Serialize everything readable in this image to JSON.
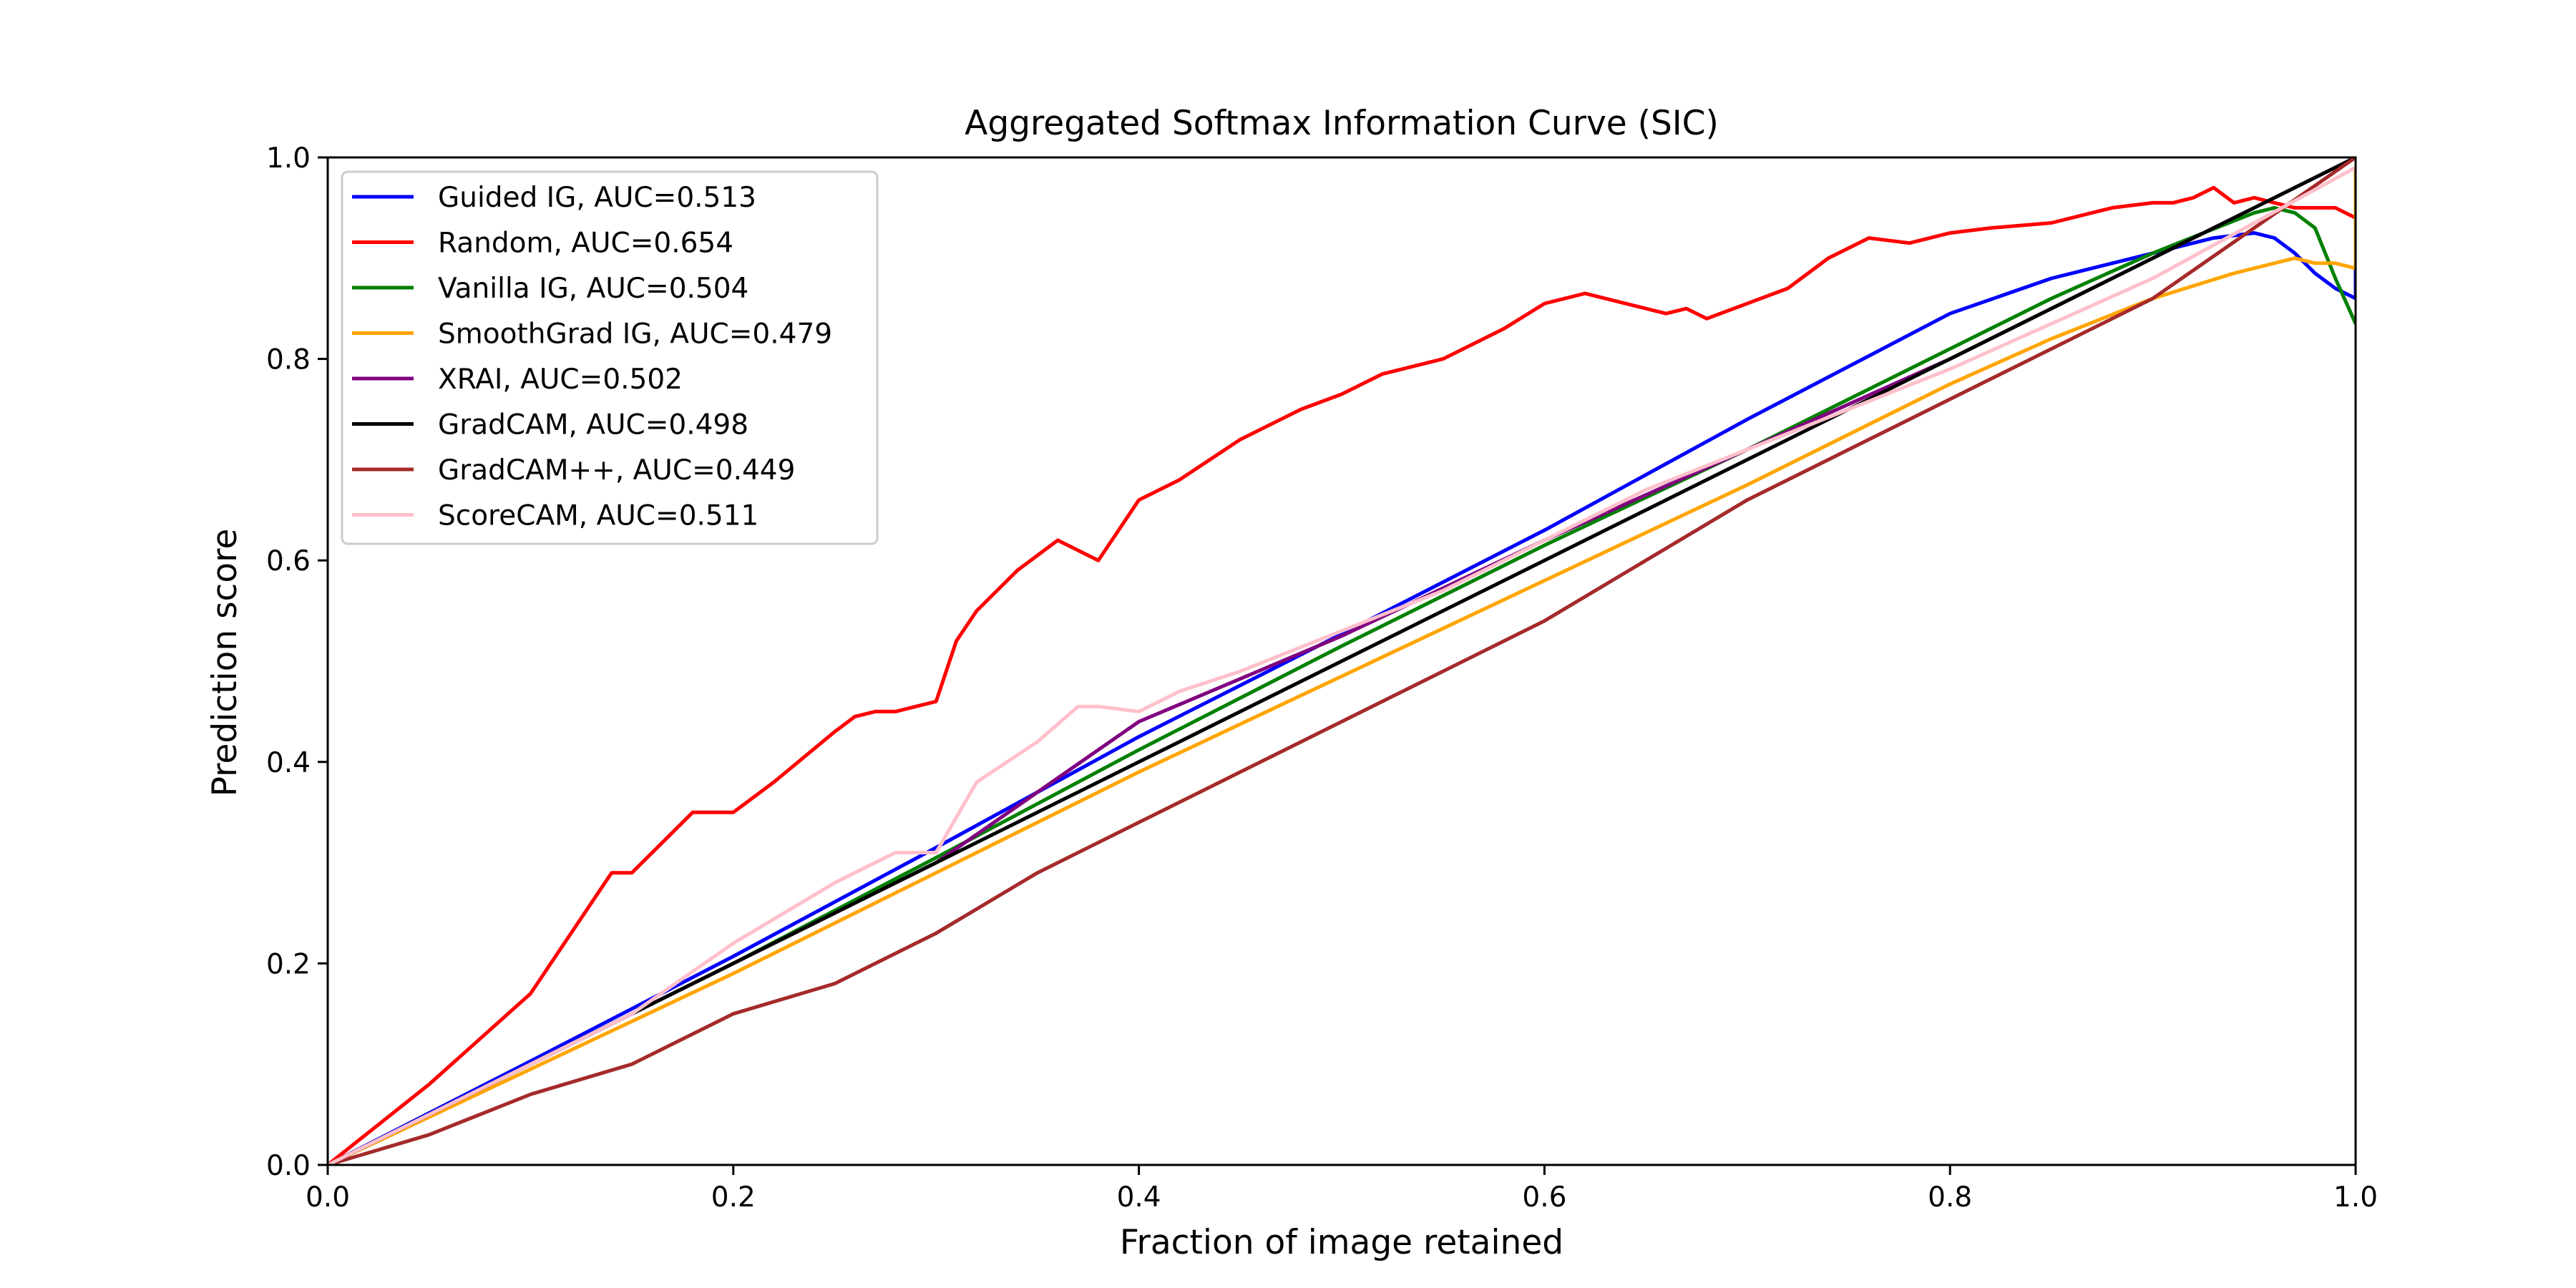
{
  "chart_data": {
    "type": "line",
    "title": "Aggregated Softmax Information Curve (SIC)",
    "xlabel": "Fraction of image retained",
    "ylabel": "Prediction score",
    "xlim": [
      0.0,
      1.0
    ],
    "ylim": [
      0.0,
      1.0
    ],
    "xticks": [
      "0.0",
      "0.2",
      "0.4",
      "0.6",
      "0.8",
      "1.0"
    ],
    "yticks": [
      "0.0",
      "0.2",
      "0.4",
      "0.6",
      "0.8",
      "1.0"
    ],
    "grid": false,
    "legend_position": "upper-left",
    "series": [
      {
        "name": "Guided IG, AUC=0.513",
        "color": "#0000ff",
        "x": [
          0.0,
          0.1,
          0.2,
          0.3,
          0.4,
          0.5,
          0.6,
          0.7,
          0.8,
          0.85,
          0.9,
          0.93,
          0.95,
          0.96,
          0.97,
          0.98,
          0.99,
          1.0,
          1.0
        ],
        "y": [
          0.0,
          0.103,
          0.207,
          0.315,
          0.425,
          0.527,
          0.63,
          0.74,
          0.845,
          0.88,
          0.905,
          0.92,
          0.925,
          0.92,
          0.905,
          0.885,
          0.87,
          0.86,
          0.95
        ]
      },
      {
        "name": "Random, AUC=0.654",
        "color": "#ff0000",
        "x": [
          0.0,
          0.05,
          0.1,
          0.14,
          0.15,
          0.17,
          0.18,
          0.19,
          0.2,
          0.22,
          0.25,
          0.26,
          0.27,
          0.28,
          0.3,
          0.31,
          0.32,
          0.34,
          0.36,
          0.38,
          0.39,
          0.4,
          0.42,
          0.45,
          0.48,
          0.5,
          0.52,
          0.55,
          0.58,
          0.6,
          0.62,
          0.64,
          0.66,
          0.67,
          0.68,
          0.7,
          0.72,
          0.74,
          0.76,
          0.78,
          0.8,
          0.82,
          0.85,
          0.88,
          0.9,
          0.91,
          0.92,
          0.93,
          0.94,
          0.95,
          0.96,
          0.97,
          0.98,
          0.99,
          1.0,
          1.0
        ],
        "y": [
          0.0,
          0.08,
          0.17,
          0.29,
          0.29,
          0.33,
          0.35,
          0.35,
          0.35,
          0.38,
          0.43,
          0.445,
          0.45,
          0.45,
          0.46,
          0.52,
          0.55,
          0.59,
          0.62,
          0.6,
          0.63,
          0.66,
          0.68,
          0.72,
          0.75,
          0.765,
          0.785,
          0.8,
          0.83,
          0.855,
          0.865,
          0.855,
          0.845,
          0.85,
          0.84,
          0.855,
          0.87,
          0.9,
          0.92,
          0.915,
          0.925,
          0.93,
          0.935,
          0.95,
          0.955,
          0.955,
          0.96,
          0.97,
          0.955,
          0.96,
          0.955,
          0.95,
          0.95,
          0.95,
          0.94,
          0.95
        ]
      },
      {
        "name": "Vanilla IG, AUC=0.504",
        "color": "#008000",
        "x": [
          0.0,
          0.1,
          0.2,
          0.3,
          0.4,
          0.5,
          0.6,
          0.7,
          0.8,
          0.85,
          0.9,
          0.95,
          0.96,
          0.97,
          0.98,
          0.99,
          1.0
        ],
        "y": [
          0.0,
          0.1,
          0.2,
          0.305,
          0.412,
          0.515,
          0.615,
          0.71,
          0.81,
          0.86,
          0.905,
          0.945,
          0.95,
          0.945,
          0.93,
          0.88,
          0.835
        ]
      },
      {
        "name": "SmoothGrad IG, AUC=0.479",
        "color": "#ffa500",
        "x": [
          0.0,
          0.1,
          0.2,
          0.3,
          0.4,
          0.5,
          0.6,
          0.7,
          0.8,
          0.85,
          0.9,
          0.94,
          0.96,
          0.97,
          0.98,
          0.99,
          1.0,
          1.0
        ],
        "y": [
          0.0,
          0.095,
          0.19,
          0.29,
          0.39,
          0.485,
          0.58,
          0.675,
          0.775,
          0.82,
          0.86,
          0.885,
          0.895,
          0.9,
          0.895,
          0.895,
          0.89,
          0.99
        ]
      },
      {
        "name": "XRAI, AUC=0.502",
        "color": "#800080",
        "x": [
          0.0,
          0.1,
          0.2,
          0.3,
          0.4,
          0.5,
          0.6,
          0.7,
          0.8,
          0.9,
          1.0
        ],
        "y": [
          0.0,
          0.1,
          0.2,
          0.3,
          0.44,
          0.525,
          0.62,
          0.71,
          0.8,
          0.9,
          1.0
        ]
      },
      {
        "name": "GradCAM, AUC=0.498",
        "color": "#000000",
        "x": [
          0.0,
          0.1,
          0.2,
          0.3,
          0.4,
          0.5,
          0.6,
          0.7,
          0.8,
          0.9,
          1.0
        ],
        "y": [
          0.0,
          0.1,
          0.2,
          0.3,
          0.4,
          0.5,
          0.6,
          0.7,
          0.8,
          0.9,
          1.0
        ]
      },
      {
        "name": "GradCAM++, AUC=0.449",
        "color": "#a52a2a",
        "x": [
          0.0,
          0.05,
          0.1,
          0.15,
          0.2,
          0.25,
          0.3,
          0.35,
          0.4,
          0.45,
          0.5,
          0.55,
          0.6,
          0.65,
          0.7,
          0.75,
          0.8,
          0.85,
          0.9,
          1.0
        ],
        "y": [
          0.0,
          0.03,
          0.07,
          0.1,
          0.15,
          0.18,
          0.23,
          0.29,
          0.34,
          0.39,
          0.44,
          0.49,
          0.54,
          0.6,
          0.66,
          0.71,
          0.76,
          0.81,
          0.86,
          1.0
        ]
      },
      {
        "name": "ScoreCAM, AUC=0.511",
        "color": "#ffc0cb",
        "x": [
          0.0,
          0.1,
          0.15,
          0.2,
          0.25,
          0.28,
          0.3,
          0.32,
          0.35,
          0.37,
          0.38,
          0.4,
          0.42,
          0.45,
          0.5,
          0.55,
          0.6,
          0.65,
          0.7,
          0.8,
          0.9,
          1.0
        ],
        "y": [
          0.0,
          0.1,
          0.15,
          0.22,
          0.28,
          0.31,
          0.31,
          0.38,
          0.42,
          0.455,
          0.455,
          0.45,
          0.47,
          0.49,
          0.53,
          0.57,
          0.62,
          0.67,
          0.71,
          0.79,
          0.88,
          0.99
        ]
      }
    ]
  }
}
